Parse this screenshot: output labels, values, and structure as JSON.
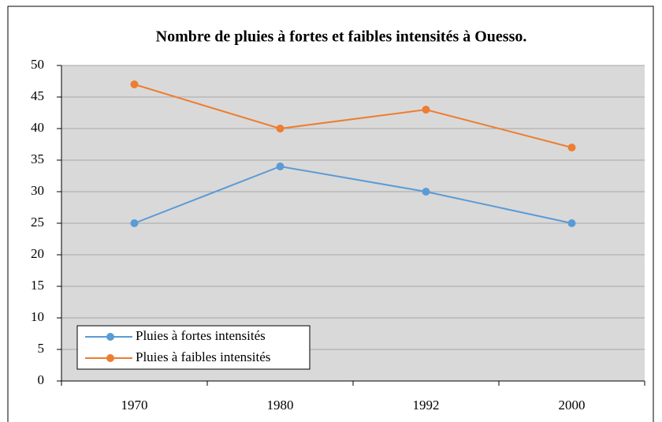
{
  "chart_data": {
    "type": "line",
    "title": "Nombre de pluies  à fortes et faibles intensités à Ouesso.",
    "categories": [
      "1970",
      "1980",
      "1992",
      "2000"
    ],
    "series": [
      {
        "name": "Pluies à fortes intensités",
        "color": "#5b9bd5",
        "values": [
          25,
          34,
          30,
          25
        ]
      },
      {
        "name": "Pluies à faibles intensités",
        "color": "#ed7d31",
        "values": [
          47,
          40,
          43,
          37
        ]
      }
    ],
    "ylim": [
      0,
      50
    ],
    "yticks": [
      0,
      5,
      10,
      15,
      20,
      25,
      30,
      35,
      40,
      45,
      50
    ],
    "grid": true,
    "legend": "lower left"
  }
}
